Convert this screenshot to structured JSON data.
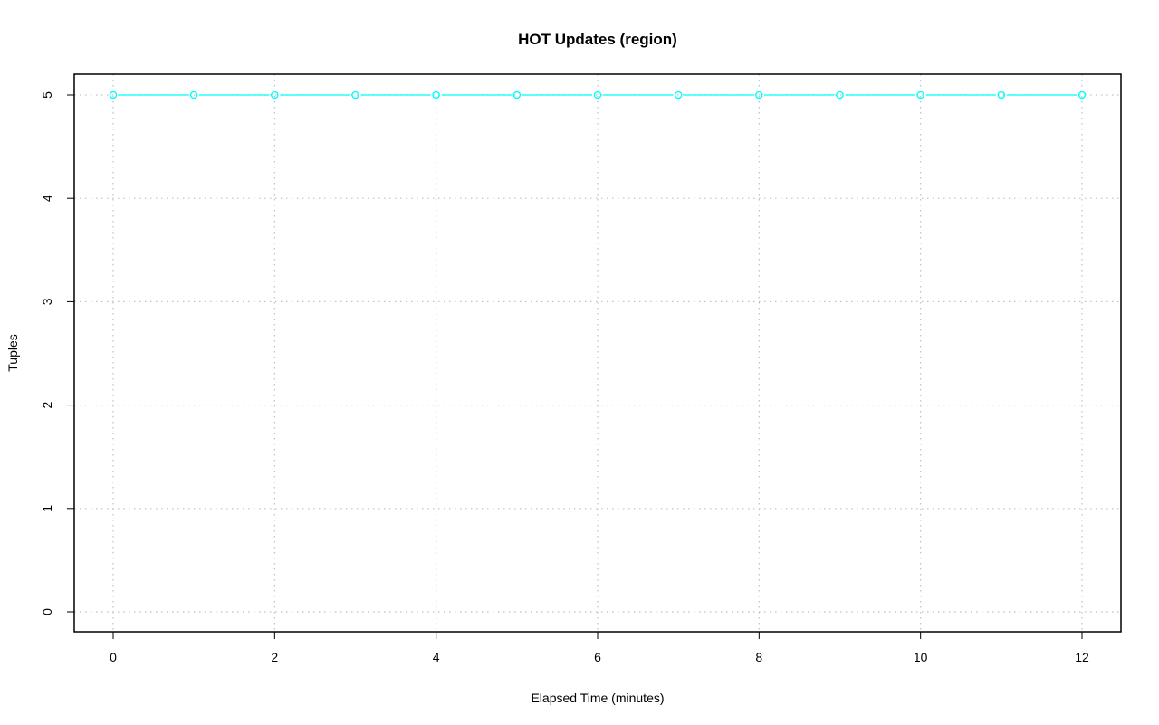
{
  "chart_data": {
    "type": "line",
    "title": "HOT Updates (region)",
    "xlabel": "Elapsed Time (minutes)",
    "ylabel": "Tuples",
    "xlim": [
      0,
      12
    ],
    "ylim": [
      0,
      5
    ],
    "xticks": [
      0,
      2,
      4,
      6,
      8,
      10,
      12
    ],
    "yticks": [
      0,
      1,
      2,
      3,
      4,
      5
    ],
    "grid": true,
    "series": [
      {
        "color": "#00ffff",
        "marker": "circle",
        "x": [
          0,
          1,
          2,
          3,
          4,
          5,
          6,
          7,
          8,
          9,
          10,
          11,
          12
        ],
        "y": [
          5,
          5,
          5,
          5,
          5,
          5,
          5,
          5,
          5,
          5,
          5,
          5,
          5
        ]
      }
    ]
  }
}
